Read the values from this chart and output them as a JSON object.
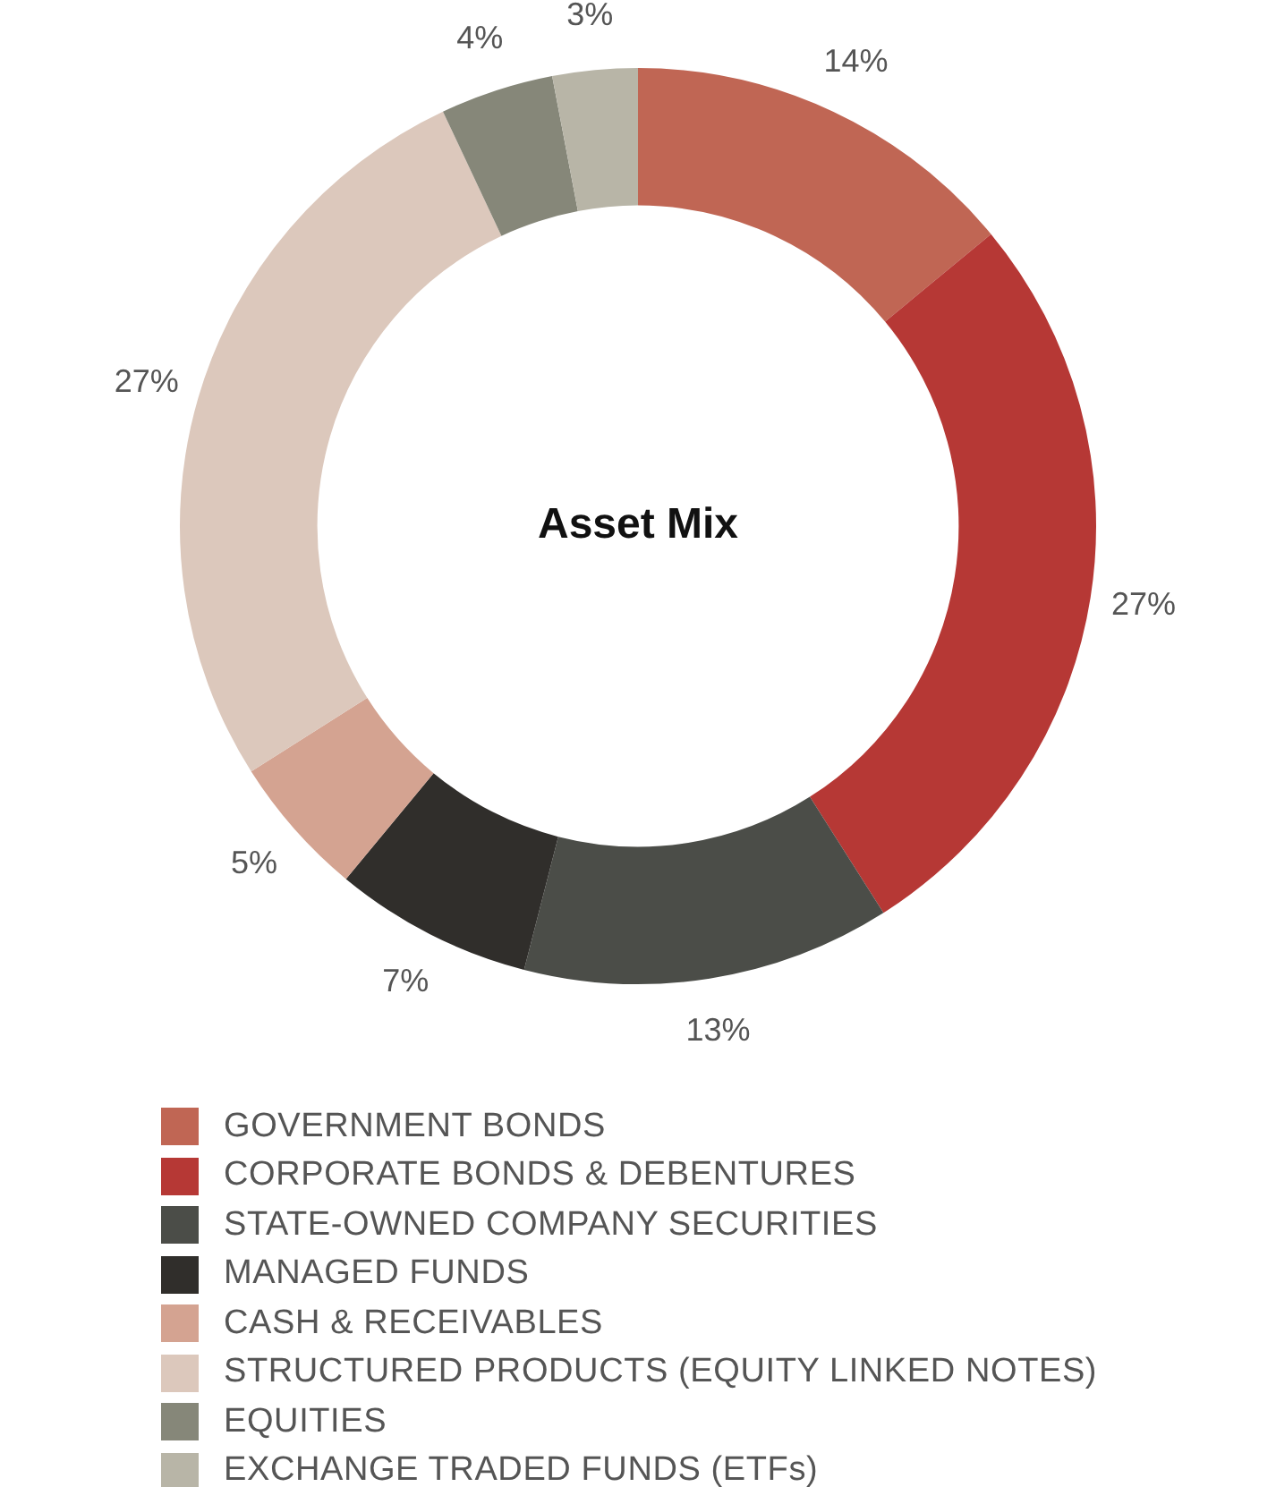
{
  "chart_data": {
    "type": "donut",
    "title": "Asset Mix",
    "categories": [
      "GOVERNMENT BONDS",
      "CORPORATE BONDS & DEBENTURES",
      "STATE-OWNED COMPANY SECURITIES",
      "MANAGED FUNDS",
      "CASH & RECEIVABLES",
      "STRUCTURED PRODUCTS (EQUITY LINKED NOTES)",
      "EQUITIES",
      "EXCHANGE TRADED FUNDS (ETFs)"
    ],
    "values": [
      14,
      27,
      13,
      7,
      5,
      27,
      4,
      3
    ],
    "value_labels": [
      "14%",
      "27%",
      "13%",
      "7%",
      "5%",
      "27%",
      "4%",
      "3%"
    ],
    "colors": [
      "#c06654",
      "#b63835",
      "#4b4d48",
      "#302e2b",
      "#d4a391",
      "#dcc8bc",
      "#868779",
      "#b8b5a7"
    ],
    "legend": "bottom"
  }
}
